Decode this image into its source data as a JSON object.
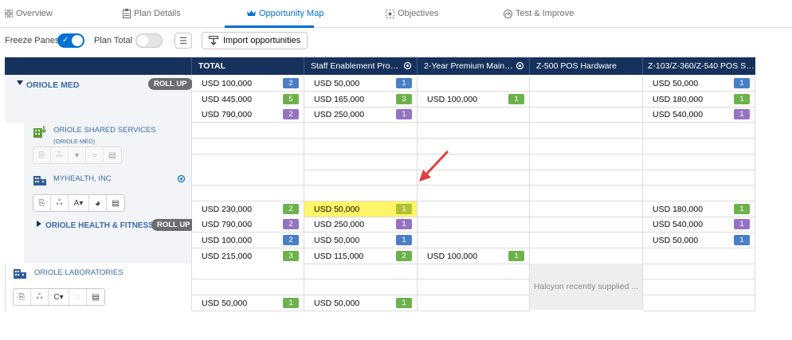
{
  "tabs": [
    {
      "label": "Overview",
      "icon": "grid-icon"
    },
    {
      "label": "Plan Details",
      "icon": "clipboard-icon"
    },
    {
      "label": "Opportunity Map",
      "icon": "crown-icon"
    },
    {
      "label": "Objectives",
      "icon": "target-icon"
    },
    {
      "label": "Test & Improve",
      "icon": "gauge-icon"
    }
  ],
  "toolbar": {
    "freeze_label": "Freeze Panes",
    "freeze_on": true,
    "plan_total_label": "Plan Total",
    "plan_total_on": false,
    "import_label": "Import opportunities"
  },
  "columns": [
    {
      "label": "TOTAL"
    },
    {
      "label": "Staff Enablement Progr..."
    },
    {
      "label": "2-Year Premium Mainte..."
    },
    {
      "label": "Z-500 POS Hardware"
    },
    {
      "label": "Z-103/Z-360/Z-540 POS Soft..."
    }
  ],
  "accounts": {
    "oriole_med": {
      "name": "ORIOLE MED",
      "badge": "ROLL UP"
    },
    "oriole_shared": {
      "name": "ORIOLE SHARED SERVICES",
      "sub": "(ORIOLE MED)"
    },
    "myhealth": {
      "name": "MYHEALTH, INC",
      "tool_letter": "A"
    },
    "oriole_hf": {
      "name": "ORIOLE HEALTH & FITNESS",
      "badge": "ROLL UP"
    },
    "oriole_labs": {
      "name": "ORIOLE LABORATORIES",
      "tool_letter": "C"
    }
  },
  "cells": {
    "r1": {
      "total": "USD 100,000",
      "total_n": "2",
      "c1": "USD 50,000",
      "c1_n": "1",
      "c4": "USD 50,000",
      "c4_n": "1"
    },
    "r2": {
      "total": "USD 445,000",
      "total_n": "5",
      "c1": "USD 165,000",
      "c1_n": "3",
      "c2": "USD 100,000",
      "c2_n": "1",
      "c4": "USD 180,000",
      "c4_n": "1"
    },
    "r3": {
      "total": "USD 790,000",
      "total_n": "2",
      "c1": "USD 250,000",
      "c1_n": "1",
      "c4": "USD 540,000",
      "c4_n": "1"
    },
    "r9": {
      "total": "USD 230,000",
      "total_n": "2",
      "c1": "USD 50,000",
      "c1_n": "1",
      "c4": "USD 180,000",
      "c4_n": "1"
    },
    "r10": {
      "total": "USD 790,000",
      "total_n": "2",
      "c1": "USD 250,000",
      "c1_n": "1",
      "c4": "USD 540,000",
      "c4_n": "1"
    },
    "r11": {
      "total": "USD 100,000",
      "total_n": "2",
      "c1": "USD 50,000",
      "c1_n": "1",
      "c4": "USD 50,000",
      "c4_n": "1"
    },
    "r12": {
      "total": "USD 215,000",
      "total_n": "3",
      "c1": "USD 115,000",
      "c1_n": "2",
      "c2": "USD 100,000",
      "c2_n": "1"
    },
    "r15": {
      "total": "USD 50,000",
      "total_n": "1",
      "c1": "USD 50,000",
      "c1_n": "1"
    }
  },
  "supplied_note": "Halcyon recently supplied ...",
  "colors": {
    "header": "#16325c",
    "accent": "#0070d2",
    "blue": "#4a7ec7",
    "green": "#6cb24c",
    "purple": "#9573c2",
    "highlight": "#fff566",
    "arrow": "#e0403f"
  }
}
